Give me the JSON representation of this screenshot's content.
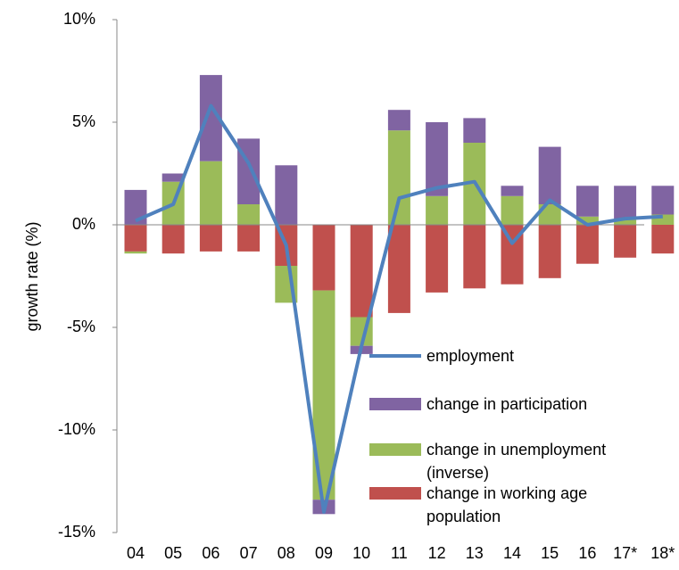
{
  "chart_data": {
    "type": "bar",
    "y_label": "growth rate (%)",
    "categories": [
      "04",
      "05",
      "06",
      "07",
      "08",
      "09",
      "10",
      "11",
      "12",
      "13",
      "14",
      "15",
      "16",
      "17*",
      "18*"
    ],
    "ylim": [
      -15,
      10
    ],
    "yticks": [
      {
        "value": -15,
        "label": "-15%"
      },
      {
        "value": -10,
        "label": "-10%"
      },
      {
        "value": -5,
        "label": "-5%"
      },
      {
        "value": 0,
        "label": "0%"
      },
      {
        "value": 5,
        "label": "5%"
      },
      {
        "value": 10,
        "label": "10%"
      }
    ],
    "series": [
      {
        "name": "change in working age population",
        "color": "#c0504d",
        "values": [
          -1.3,
          -1.4,
          -1.3,
          -1.3,
          -2.0,
          -3.2,
          -4.5,
          -4.3,
          -3.3,
          -3.1,
          -2.9,
          -2.6,
          -1.9,
          -1.6,
          -1.4
        ]
      },
      {
        "name": "change in unemployment (inverse)",
        "color": "#9bbb59",
        "values": [
          -0.1,
          2.1,
          3.1,
          1.0,
          -1.8,
          -10.2,
          -1.4,
          4.6,
          1.4,
          4.0,
          1.4,
          1.0,
          0.4,
          0.3,
          0.5
        ]
      },
      {
        "name": "change in participation",
        "color": "#8064a2",
        "values": [
          1.7,
          0.4,
          4.2,
          3.2,
          2.9,
          -0.7,
          -0.4,
          1.0,
          3.6,
          1.2,
          0.5,
          2.8,
          1.5,
          1.6,
          1.4
        ]
      },
      {
        "name": "employment",
        "color": "#4f81bd",
        "type": "line",
        "values": [
          0.2,
          1.0,
          5.8,
          3.0,
          -1.0,
          -14.0,
          -5.9,
          1.3,
          1.8,
          2.1,
          -0.9,
          1.2,
          0.0,
          0.3,
          0.4
        ]
      }
    ]
  }
}
